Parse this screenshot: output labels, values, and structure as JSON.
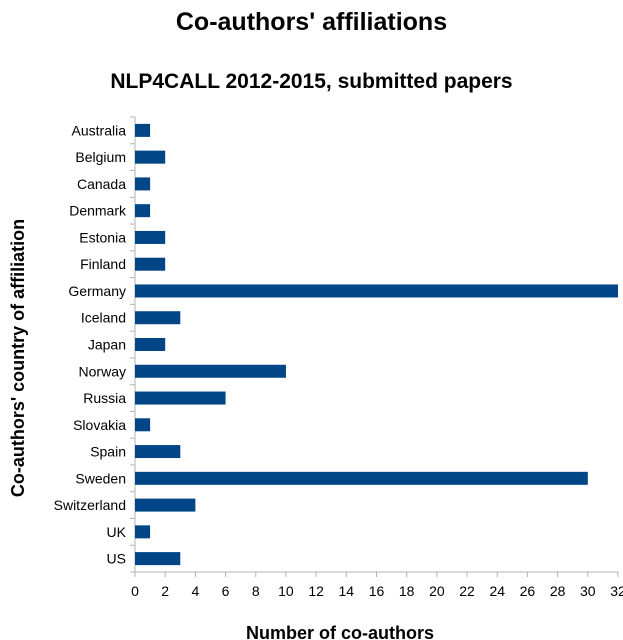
{
  "chart_data": {
    "type": "bar",
    "orientation": "horizontal",
    "title": "Co-authors' affiliations",
    "subtitle": "NLP4CALL 2012-2015, submitted papers",
    "xlabel": "Number of co-authors",
    "ylabel": "Co-authors' country of affiliation",
    "categories": [
      "Australia",
      "Belgium",
      "Canada",
      "Denmark",
      "Estonia",
      "Finland",
      "Germany",
      "Iceland",
      "Japan",
      "Norway",
      "Russia",
      "Slovakia",
      "Spain",
      "Sweden",
      "Switzerland",
      "UK",
      "US"
    ],
    "values": [
      1,
      2,
      1,
      1,
      2,
      2,
      32,
      3,
      2,
      10,
      6,
      1,
      3,
      30,
      4,
      1,
      3
    ],
    "xlim": [
      0,
      32
    ],
    "xticks": [
      0,
      2,
      4,
      6,
      8,
      10,
      12,
      14,
      16,
      18,
      20,
      22,
      24,
      26,
      28,
      30,
      32
    ],
    "bar_color": "#004586",
    "grid": false,
    "legend": "none"
  }
}
